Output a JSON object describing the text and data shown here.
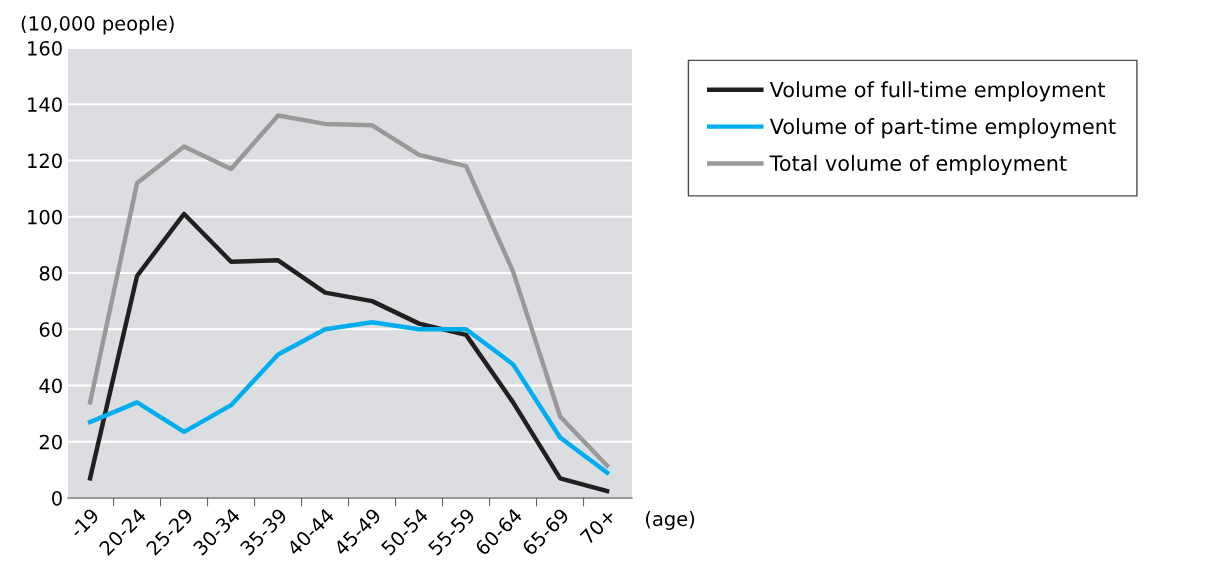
{
  "chart_data": {
    "type": "line",
    "ylabel": "(10,000 people)",
    "xlabel": "(age)",
    "categories": [
      "-19",
      "20-24",
      "25-29",
      "30-34",
      "35-39",
      "40-44",
      "45-49",
      "50-54",
      "55-59",
      "60-64",
      "65-69",
      "70+"
    ],
    "series": [
      {
        "name": "Volume of full-time employment",
        "color": "#231f20",
        "values": [
          7,
          79,
          101,
          84,
          84.5,
          73,
          70,
          62,
          58,
          34,
          7,
          2.5
        ]
      },
      {
        "name": "Volume of part-time employment",
        "color": "#00aeef",
        "values": [
          27,
          34,
          23.5,
          33,
          51,
          60,
          62.5,
          60,
          60,
          47.5,
          21.5,
          9
        ]
      },
      {
        "name": "Total volume of employment",
        "color": "#999999",
        "values": [
          34,
          112,
          125,
          117,
          136,
          133,
          132.5,
          122,
          118,
          80.5,
          29,
          11.5
        ]
      }
    ],
    "ylim": [
      0,
      160
    ],
    "yticks": [
      0,
      20,
      40,
      60,
      80,
      100,
      120,
      140,
      160
    ],
    "grid": "y",
    "legend": "right",
    "marker": "none",
    "line_style": "solid"
  }
}
